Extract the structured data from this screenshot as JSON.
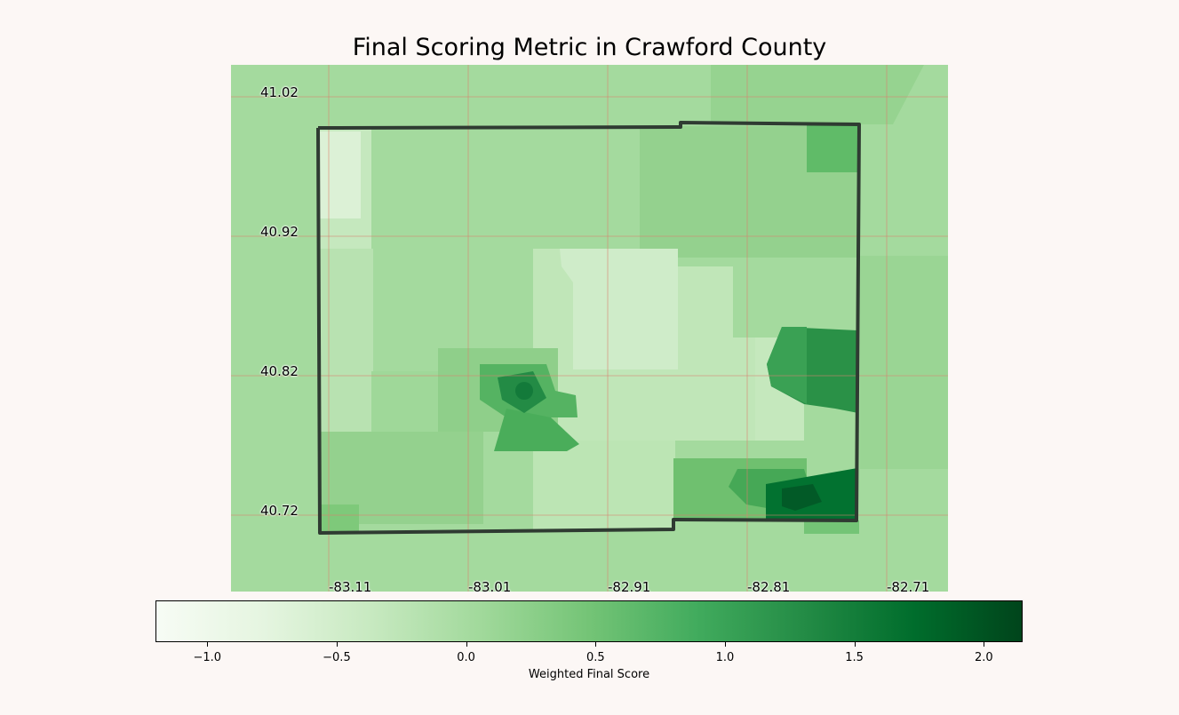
{
  "title": "Final Scoring Metric in Crawford County",
  "lat_labels": [
    "41.02",
    "40.92",
    "40.82",
    "40.72"
  ],
  "lon_labels": [
    "-83.11",
    "-83.01",
    "-82.91",
    "-82.81",
    "-82.71"
  ],
  "colorbar": {
    "label": "Weighted Final Score",
    "min": -1.2,
    "max": 2.15,
    "ticks": [
      "−1.0",
      "−0.5",
      "0.0",
      "0.5",
      "1.0",
      "1.5",
      "2.0"
    ],
    "tick_values": [
      -1.0,
      -0.5,
      0.0,
      0.5,
      1.0,
      1.5,
      2.0
    ],
    "colormap": "Greens",
    "stops": [
      "#f7fcf5",
      "#e5f5e0",
      "#c7e9c0",
      "#a1d99b",
      "#74c476",
      "#41ab5d",
      "#238b45",
      "#006d2c",
      "#00441b"
    ]
  },
  "colors": {
    "background": "#fcf7f5",
    "county_border": "#2f3b32",
    "graticule": "#d9826f"
  }
}
